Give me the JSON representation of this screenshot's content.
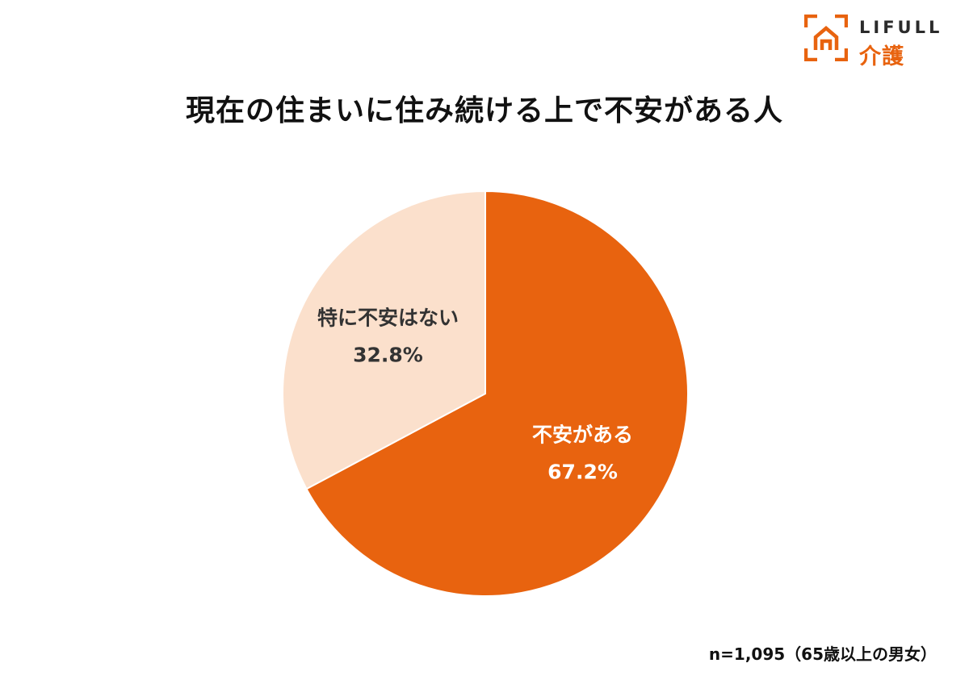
{
  "logo": {
    "brand": "LIFULL",
    "service": "介護",
    "icon": "house-bracket-icon"
  },
  "title": "現在の住まいに住み続ける上で不安がある人",
  "footnote": "n=1,095（65歳以上の男女）",
  "colors": {
    "accent": "#e8630f",
    "light": "#fbe0cc",
    "label_dark": "#333333",
    "label_light": "#ffffff"
  },
  "chart_data": {
    "type": "pie",
    "title": "現在の住まいに住み続ける上で不安がある人",
    "start": "12 o'clock, clockwise",
    "slices": [
      {
        "label": "不安がある",
        "value": 67.2,
        "value_label": "67.2%",
        "color": "#e8630f",
        "text_color": "#ffffff"
      },
      {
        "label": "特に不安はない",
        "value": 32.8,
        "value_label": "32.8%",
        "color": "#fbe0cc",
        "text_color": "#333333"
      }
    ]
  }
}
